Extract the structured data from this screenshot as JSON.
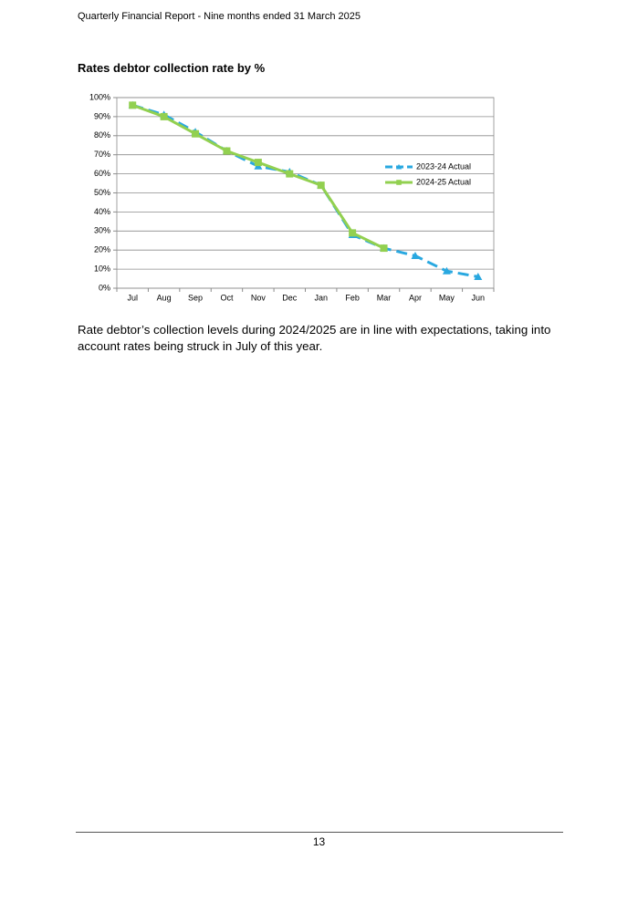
{
  "header": "Quarterly Financial Report - Nine months ended 31 March 2025",
  "heading": "Rates debtor collection rate by %",
  "chart_data": {
    "type": "line",
    "categories": [
      "Jul",
      "Aug",
      "Sep",
      "Oct",
      "Nov",
      "Dec",
      "Jan",
      "Feb",
      "Mar",
      "Apr",
      "May",
      "Jun"
    ],
    "series": [
      {
        "name": "2023-24 Actual",
        "color": "#29a8e0",
        "dash": true,
        "marker": "triangle",
        "values": [
          96,
          91,
          82,
          72,
          64,
          61,
          54,
          28,
          21,
          17,
          9,
          6
        ]
      },
      {
        "name": "2024-25 Actual",
        "color": "#92d050",
        "dash": false,
        "marker": "square",
        "values": [
          96,
          90,
          81,
          72,
          66,
          60,
          54,
          29,
          21,
          null,
          null,
          null
        ]
      }
    ],
    "ylim": [
      0,
      100
    ],
    "yticks": [
      {
        "value": 0,
        "label": "0%"
      },
      {
        "value": 10,
        "label": "10%"
      },
      {
        "value": 20,
        "label": "20%"
      },
      {
        "value": 30,
        "label": "30%"
      },
      {
        "value": 40,
        "label": "40%"
      },
      {
        "value": 50,
        "label": "50%"
      },
      {
        "value": 60,
        "label": "60%"
      },
      {
        "value": 70,
        "label": "70%"
      },
      {
        "value": 80,
        "label": "80%"
      },
      {
        "value": 90,
        "label": "90%"
      },
      {
        "value": 100,
        "label": "100%"
      }
    ],
    "grid": true,
    "legend": "right"
  },
  "paragraph": "Rate debtor’s collection levels during 2024/2025 are in line with expectations, taking into account rates being struck in July of this year.",
  "page_number": 13
}
